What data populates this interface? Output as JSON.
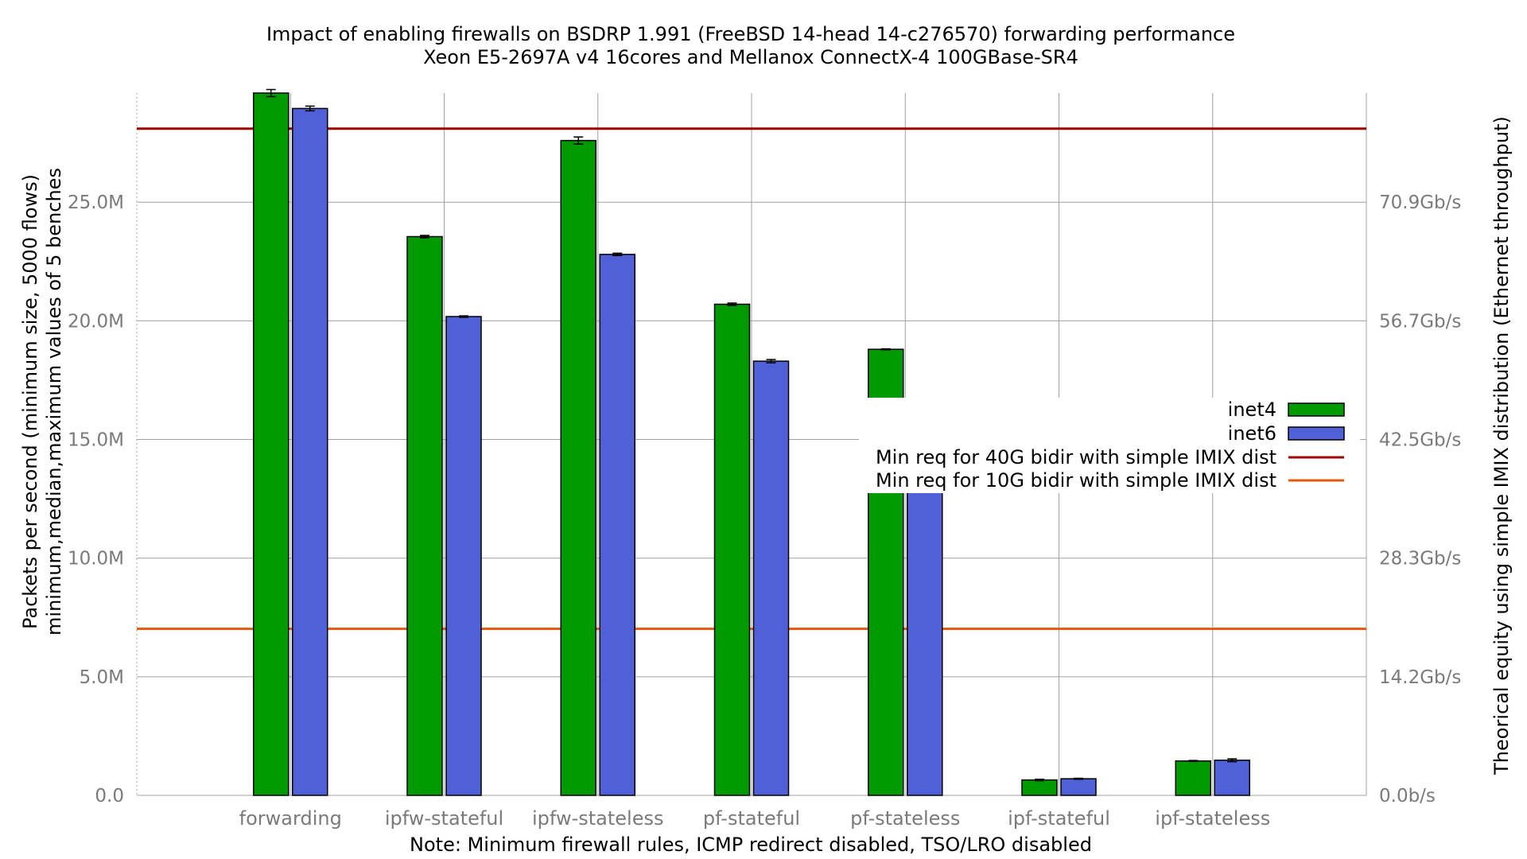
{
  "chart_data": {
    "type": "bar",
    "title": "Impact of enabling firewalls on BSDRP 1.991 (FreeBSD 14-head 14-c276570) forwarding performance",
    "subtitle": "Xeon E5-2697A v4 16cores and Mellanox ConnectX-4 100GBase-SR4",
    "xlabel": "Note: Minimum firewall rules, ICMP redirect disabled, TSO/LRO disabled",
    "ylabel": "Packets per second (minimum size, 5000 flows)",
    "ylabel2": "minimum,median,maximum values of 5 benches",
    "y2label": "Theorical equity using simple IMIX distribution (Ethernet throughput)",
    "ylim": [
      0,
      29600000
    ],
    "yticks": [
      {
        "value": 0,
        "label": "0.0"
      },
      {
        "value": 5000000,
        "label": "5.0M"
      },
      {
        "value": 10000000,
        "label": "10.0M"
      },
      {
        "value": 15000000,
        "label": "15.0M"
      },
      {
        "value": 20000000,
        "label": "20.0M"
      },
      {
        "value": 25000000,
        "label": "25.0M"
      }
    ],
    "y2ticks": [
      {
        "value": 0,
        "label": "0.0b/s"
      },
      {
        "value": 5000000,
        "label": "14.2Gb/s"
      },
      {
        "value": 10000000,
        "label": "28.3Gb/s"
      },
      {
        "value": 15000000,
        "label": "42.5Gb/s"
      },
      {
        "value": 20000000,
        "label": "56.7Gb/s"
      },
      {
        "value": 25000000,
        "label": "70.9Gb/s"
      }
    ],
    "grid": true,
    "legend_position": "right",
    "categories": [
      "forwarding",
      "ipfw-stateful",
      "ipfw-stateless",
      "pf-stateful",
      "pf-stateless",
      "ipf-stateful",
      "ipf-stateless"
    ],
    "series": [
      {
        "name": "inet4",
        "color": "#009900",
        "values": [
          29600000,
          23550000,
          27600000,
          20700000,
          18800000,
          650000,
          1450000
        ],
        "min": [
          29450000,
          23500000,
          27450000,
          20650000,
          18780000,
          620000,
          1430000
        ],
        "max": [
          29750000,
          23600000,
          27750000,
          20750000,
          18820000,
          680000,
          1470000
        ]
      },
      {
        "name": "inet6",
        "color": "#5060d6",
        "values": [
          28950000,
          20180000,
          22800000,
          18300000,
          16450000,
          700000,
          1480000
        ],
        "min": [
          28850000,
          20150000,
          22750000,
          18230000,
          16380000,
          680000,
          1420000
        ],
        "max": [
          29050000,
          20210000,
          22850000,
          18370000,
          16520000,
          720000,
          1540000
        ]
      }
    ],
    "reference_lines": [
      {
        "name": "Min req for 40G bidir with simple IMIX dist",
        "value": 28100000,
        "color": "#a10000"
      },
      {
        "name": "Min req for 10G bidir with simple IMIX dist",
        "value": 7020000,
        "color": "#e8580c"
      }
    ]
  }
}
